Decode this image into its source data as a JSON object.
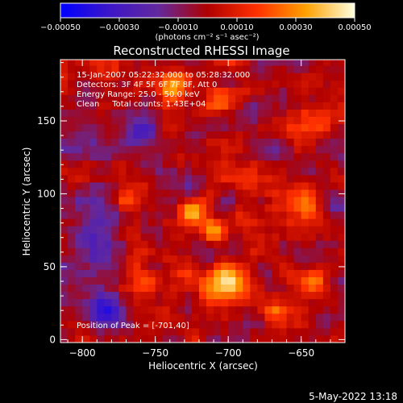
{
  "chart_data": {
    "type": "heatmap",
    "title": "Reconstructed RHESSI Image",
    "xlabel": "Heliocentric X (arcsec)",
    "ylabel": "Heliocentric Y (arcsec)",
    "xlim": [
      -815,
      -620
    ],
    "ylim": [
      -2,
      192
    ],
    "x_ticks": [
      -800,
      -750,
      -700,
      -650
    ],
    "x_tick_labels": [
      "−800",
      "−750",
      "−700",
      "−650"
    ],
    "y_ticks": [
      0,
      50,
      100,
      150
    ],
    "y_tick_labels": [
      "0",
      "50",
      "100",
      "150"
    ],
    "colorbar": {
      "range": [
        -0.0005,
        0.0005
      ],
      "ticks": [
        -0.0005,
        -0.0003,
        -0.0001,
        0.0001,
        0.0003,
        0.0005
      ],
      "tick_labels": [
        "−0.00050",
        "−0.00030",
        "−0.00010",
        "0.00010",
        "0.00030",
        "0.00050"
      ],
      "units_label": "(photons cm⁻² s⁻¹ asec⁻²)",
      "colormap": [
        "#0000ff",
        "#3c16c8",
        "#63299d",
        "#b00000",
        "#ff3000",
        "#ffa000",
        "#ffffe0"
      ]
    },
    "annotations": [
      "15-Jan-2007 05:22:32.000 to 05:28:32.000",
      "Detectors: 3F 4F 5F 6F 7F 8F, Att 0",
      "Energy Range: 25.0 - 50.0 keV",
      "Clean     Total counts: 1.43E+04"
    ],
    "peak_label": "Position of Peak = [-701,40]",
    "peak": {
      "x": -701,
      "y": 40
    },
    "hotspots": [
      {
        "x": -701,
        "y": 40,
        "amp": 1.0,
        "r": 9
      },
      {
        "x": -710,
        "y": 75,
        "amp": 0.6,
        "r": 6
      },
      {
        "x": -725,
        "y": 88,
        "amp": 0.8,
        "r": 6
      },
      {
        "x": -740,
        "y": 175,
        "amp": 0.6,
        "r": 7
      },
      {
        "x": -650,
        "y": 150,
        "amp": 0.45,
        "r": 8
      },
      {
        "x": -640,
        "y": 40,
        "amp": 0.5,
        "r": 7
      },
      {
        "x": -645,
        "y": 95,
        "amp": 0.45,
        "r": 8
      },
      {
        "x": -685,
        "y": 110,
        "amp": 0.45,
        "r": 7
      },
      {
        "x": -770,
        "y": 95,
        "amp": 0.45,
        "r": 6
      },
      {
        "x": -730,
        "y": 45,
        "amp": 0.45,
        "r": 6
      },
      {
        "x": -755,
        "y": 40,
        "amp": 0.4,
        "r": 6
      },
      {
        "x": -705,
        "y": 165,
        "amp": 0.4,
        "r": 7
      },
      {
        "x": -670,
        "y": 20,
        "amp": 0.35,
        "r": 6
      }
    ],
    "coldspots": [
      {
        "x": -795,
        "y": 70,
        "amp": -0.6,
        "r": 14
      },
      {
        "x": -785,
        "y": 20,
        "amp": -0.55,
        "r": 12
      },
      {
        "x": -760,
        "y": 140,
        "amp": -0.45,
        "r": 10
      },
      {
        "x": -795,
        "y": 130,
        "amp": -0.35,
        "r": 10
      },
      {
        "x": -665,
        "y": 130,
        "amp": -0.35,
        "r": 8
      }
    ]
  },
  "footer": {
    "date": "5-May-2022 13:18"
  }
}
